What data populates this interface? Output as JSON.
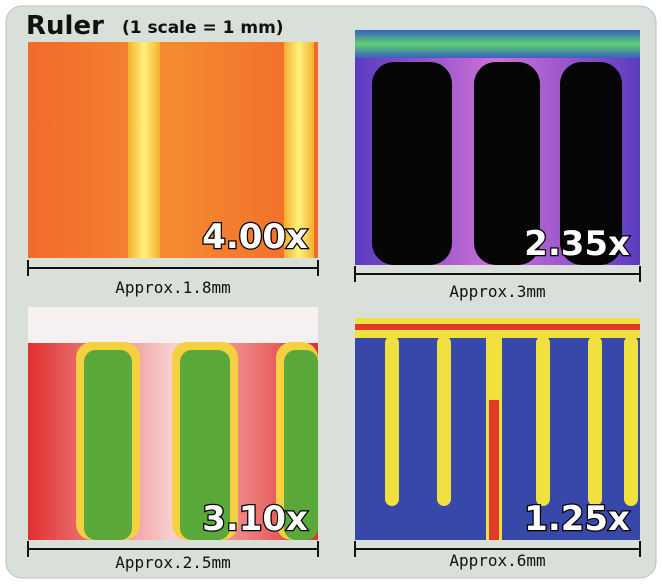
{
  "header": {
    "title": "Ruler",
    "subtitle": "(1 scale = 1 mm)"
  },
  "panels": [
    {
      "magnification": "4.00x",
      "caption": "Approx.1.8mm"
    },
    {
      "magnification": "2.35x",
      "caption": "Approx.3mm"
    },
    {
      "magnification": "3.10x",
      "caption": "Approx.2.5mm"
    },
    {
      "magnification": "1.25x",
      "caption": "Approx.6mm"
    }
  ]
}
